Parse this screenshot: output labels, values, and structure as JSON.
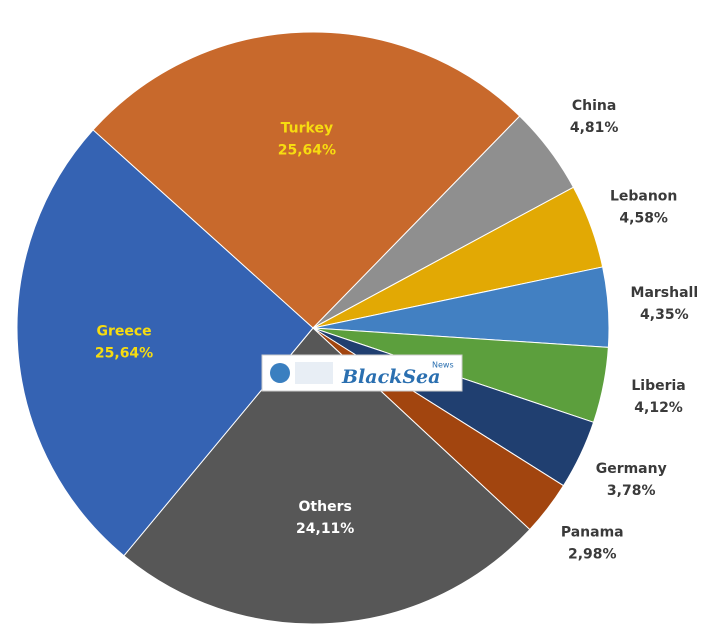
{
  "chart_data": {
    "type": "pie",
    "categories": [
      "Turkey",
      "China",
      "Lebanon",
      "Marshall",
      "Liberia",
      "Germany",
      "Panama",
      "Others",
      "Greece"
    ],
    "values": [
      25.64,
      4.81,
      4.58,
      4.35,
      4.12,
      3.78,
      2.98,
      24.11,
      25.64
    ],
    "value_labels": [
      "25,64%",
      "4,81%",
      "4,58%",
      "4,35%",
      "4,12%",
      "3,78%",
      "2,98%",
      "24,11%",
      "25,64%"
    ],
    "colors": [
      "#c8692c",
      "#8f8f8f",
      "#e2a904",
      "#4280c2",
      "#5c9f3d",
      "#203f70",
      "#a2450f",
      "#575757",
      "#3563b3"
    ],
    "logo": {
      "text": "BlackSea",
      "sup": "News"
    }
  }
}
